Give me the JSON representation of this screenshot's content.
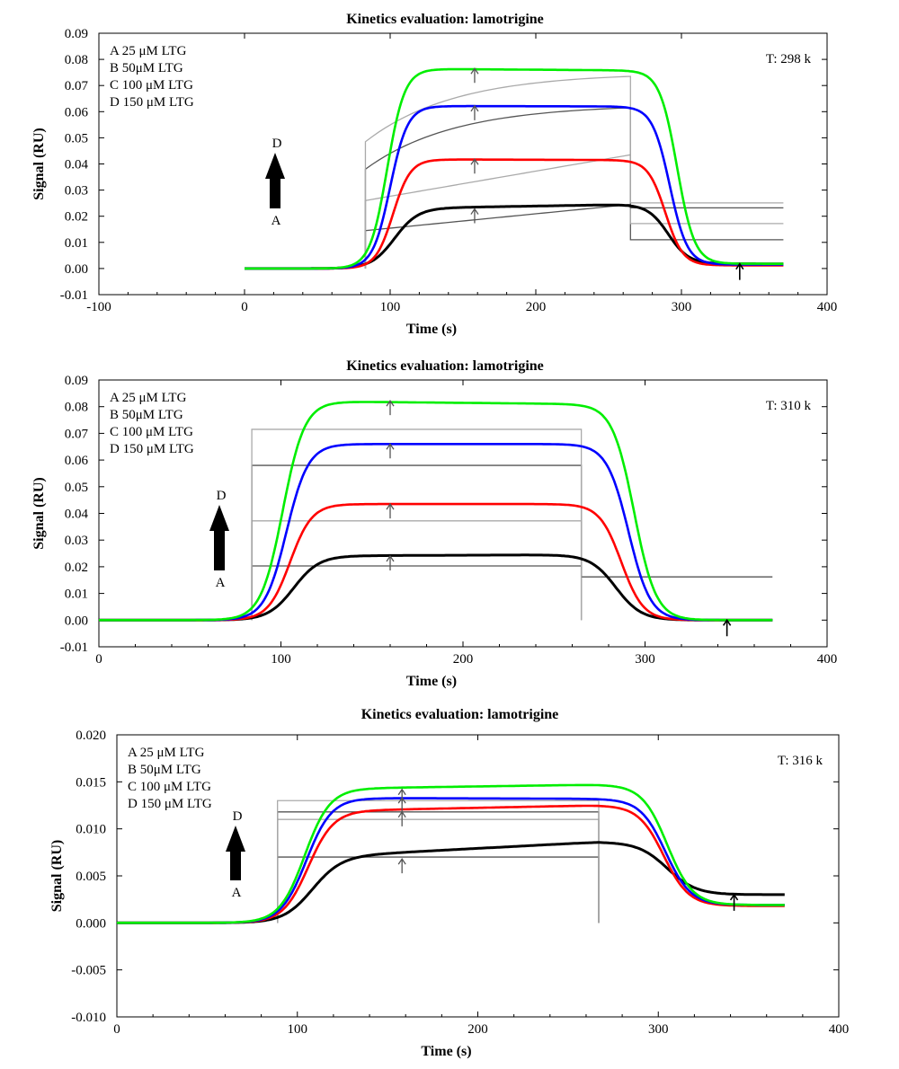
{
  "figure": {
    "background": "#ffffff",
    "line_colors": {
      "A": "#000000",
      "B": "#ff0000",
      "C": "#0000ff",
      "D": "#00ee00",
      "fit": "#555555",
      "fit_light": "#aaaaaa"
    }
  },
  "chart_data": [
    {
      "type": "line",
      "title": "Kinetics evaluation: lamotrigine",
      "xlabel": "Time (s)",
      "ylabel": "Signal (RU)",
      "xlim": [
        -100,
        400
      ],
      "ylim": [
        -0.01,
        0.09
      ],
      "xticks": [
        -100,
        0,
        100,
        200,
        300,
        400
      ],
      "xtick_labels": [
        "-100",
        "0",
        "100",
        "200",
        "300",
        "400"
      ],
      "yticks": [
        -0.01,
        0,
        0.01,
        0.02,
        0.03,
        0.04,
        0.05,
        0.06,
        0.07,
        0.08,
        0.09
      ],
      "ytick_labels": [
        "-0.01",
        "0.00",
        "0.01",
        "0.02",
        "0.03",
        "0.04",
        "0.05",
        "0.06",
        "0.07",
        "0.08",
        "0.09"
      ],
      "legend": [
        "A 25 μM LTG",
        "B 50μM LTG",
        "C 100 μM LTG",
        "D 150 μM LTG"
      ],
      "temperature_label": "T: 298 k",
      "arrow_labels": {
        "top": "D",
        "bottom": "A"
      },
      "injection_start": 83,
      "injection_end": 265,
      "series": [
        {
          "name": "A 25 μM LTG",
          "key": "A",
          "color": "#000000",
          "plateau": 0.0245,
          "plateau_start": 0.0228,
          "rise_center": 103,
          "rise_width": 8,
          "fall_center": 291,
          "fall_width": 7,
          "baseline_end": 0.0018
        },
        {
          "name": "B 50μM LTG",
          "key": "B",
          "color": "#ff0000",
          "plateau": 0.0415,
          "plateau_start": 0.0418,
          "rise_center": 102,
          "rise_width": 6,
          "fall_center": 289,
          "fall_width": 6,
          "baseline_end": 0.0012
        },
        {
          "name": "C 100 μM LTG",
          "key": "C",
          "color": "#0000ff",
          "plateau": 0.062,
          "plateau_start": 0.0622,
          "rise_center": 100,
          "rise_width": 6,
          "fall_center": 292,
          "fall_width": 6,
          "baseline_end": 0.0015
        },
        {
          "name": "D 150 μM LTG",
          "key": "D",
          "color": "#00ee00",
          "plateau": 0.0758,
          "plateau_start": 0.0765,
          "rise_center": 98,
          "rise_width": 6,
          "fall_center": 297,
          "fall_width": 6,
          "baseline_end": 0.0018
        }
      ],
      "fits": [
        {
          "start": 0.0145,
          "end": 0.0245,
          "after": 0.011,
          "curved": false,
          "tail_end": 370
        },
        {
          "start": 0.026,
          "end": 0.0435,
          "after": 0.0172,
          "curved": false,
          "tail_end": 370
        },
        {
          "start": 0.038,
          "end": 0.0615,
          "after": 0.0232,
          "curved": true,
          "tail_end": 370
        },
        {
          "start": 0.0485,
          "end": 0.0735,
          "after": 0.0251,
          "curved": true,
          "tail_end": 370
        }
      ],
      "fit_arrows_x": 158,
      "end_arrow_x": 340
    },
    {
      "type": "line",
      "title": "Kinetics evaluation: lamotrigine",
      "xlabel": "Time (s)",
      "ylabel": "Signal (RU)",
      "xlim": [
        0,
        400
      ],
      "ylim": [
        -0.01,
        0.09
      ],
      "xticks": [
        0,
        100,
        200,
        300,
        400
      ],
      "xtick_labels": [
        "0",
        "100",
        "200",
        "300",
        "400"
      ],
      "yticks": [
        -0.01,
        0,
        0.01,
        0.02,
        0.03,
        0.04,
        0.05,
        0.06,
        0.07,
        0.08,
        0.09
      ],
      "ytick_labels": [
        "-0.01",
        "0.00",
        "0.01",
        "0.02",
        "0.03",
        "0.04",
        "0.05",
        "0.06",
        "0.07",
        "0.08",
        "0.09"
      ],
      "legend": [
        "A 25 μM LTG",
        "B 50μM LTG",
        "C 100 μM LTG",
        "D 150 μM LTG"
      ],
      "temperature_label": "T: 310 k",
      "arrow_labels": {
        "top": "D",
        "bottom": "A"
      },
      "injection_start": 84,
      "injection_end": 265,
      "series": [
        {
          "name": "A 25 μM LTG",
          "key": "A",
          "color": "#000000",
          "plateau": 0.0245,
          "plateau_start": 0.024,
          "rise_center": 107,
          "rise_width": 7,
          "fall_center": 284,
          "fall_width": 7,
          "baseline_end": 0.0
        },
        {
          "name": "B 50μM LTG",
          "key": "B",
          "color": "#ff0000",
          "plateau": 0.0435,
          "plateau_start": 0.0435,
          "rise_center": 105,
          "rise_width": 6,
          "fall_center": 287,
          "fall_width": 6,
          "baseline_end": 0.0
        },
        {
          "name": "C 100 μM LTG",
          "key": "C",
          "color": "#0000ff",
          "plateau": 0.066,
          "plateau_start": 0.066,
          "rise_center": 103,
          "rise_width": 6,
          "fall_center": 291,
          "fall_width": 6,
          "baseline_end": 0.0
        },
        {
          "name": "D 150 μM LTG",
          "key": "D",
          "color": "#00ee00",
          "plateau": 0.081,
          "plateau_start": 0.0822,
          "rise_center": 101,
          "rise_width": 6,
          "fall_center": 294,
          "fall_width": 6,
          "baseline_end": 0.0
        }
      ],
      "fits": [
        {
          "start": 0.0203,
          "end": 0.0203,
          "after": 0.0,
          "curved": false,
          "tail_end": 265
        },
        {
          "start": 0.0372,
          "end": 0.0372,
          "after": 0.0,
          "curved": false,
          "tail_end": 265
        },
        {
          "start": 0.058,
          "end": 0.058,
          "after": 0.0162,
          "curved": false,
          "tail_end": 370
        },
        {
          "start": 0.0715,
          "end": 0.0715,
          "after": 0.0,
          "curved": false,
          "tail_end": 265
        }
      ],
      "fit_arrows_x": 160,
      "end_arrow_x": 345
    },
    {
      "type": "line",
      "title": "Kinetics evaluation: lamotrigine",
      "xlabel": "Time (s)",
      "ylabel": "Signal (RU)",
      "xlim": [
        0,
        400
      ],
      "ylim": [
        -0.01,
        0.02
      ],
      "xticks": [
        0,
        100,
        200,
        300,
        400
      ],
      "xtick_labels": [
        "0",
        "100",
        "200",
        "300",
        "400"
      ],
      "yticks": [
        -0.01,
        -0.005,
        0,
        0.005,
        0.01,
        0.015,
        0.02
      ],
      "ytick_labels": [
        "-0.010",
        "-0.005",
        "0.000",
        "0.005",
        "0.010",
        "0.015",
        "0.020"
      ],
      "legend": [
        "A 25 μM LTG",
        "B 50μM LTG",
        "C 100 μM LTG",
        "D 150 μM LTG"
      ],
      "temperature_label": "T: 316 k",
      "arrow_labels": {
        "top": "D",
        "bottom": "A"
      },
      "injection_start": 89,
      "injection_end": 267,
      "series": [
        {
          "name": "A 25 μM LTG",
          "key": "A",
          "color": "#000000",
          "plateau": 0.0086,
          "plateau_start": 0.0068,
          "rise_center": 108,
          "rise_width": 8,
          "fall_center": 305,
          "fall_width": 8,
          "baseline_end": 0.003
        },
        {
          "name": "B 50μM LTG",
          "key": "B",
          "color": "#ff0000",
          "plateau": 0.0125,
          "plateau_start": 0.0118,
          "rise_center": 106,
          "rise_width": 7,
          "fall_center": 303,
          "fall_width": 7,
          "baseline_end": 0.0018
        },
        {
          "name": "C 100 μM LTG",
          "key": "C",
          "color": "#0000ff",
          "plateau": 0.0132,
          "plateau_start": 0.0133,
          "rise_center": 105,
          "rise_width": 7,
          "fall_center": 304,
          "fall_width": 7,
          "baseline_end": 0.0019
        },
        {
          "name": "D 150 μM LTG",
          "key": "D",
          "color": "#00ee00",
          "plateau": 0.0147,
          "plateau_start": 0.0142,
          "rise_center": 104,
          "rise_width": 7,
          "fall_center": 305,
          "fall_width": 7,
          "baseline_end": 0.0019
        }
      ],
      "fits": [
        {
          "start": 0.007,
          "end": 0.007,
          "after": 0.0,
          "curved": false,
          "tail_end": 267
        },
        {
          "start": 0.011,
          "end": 0.011,
          "after": 0.0,
          "curved": false,
          "tail_end": 267
        },
        {
          "start": 0.0118,
          "end": 0.0118,
          "after": 0.0,
          "curved": false,
          "tail_end": 267
        },
        {
          "start": 0.013,
          "end": 0.013,
          "after": 0.0,
          "curved": false,
          "tail_end": 267
        }
      ],
      "fit_arrows_x": 158,
      "end_arrow_x": 342
    }
  ]
}
